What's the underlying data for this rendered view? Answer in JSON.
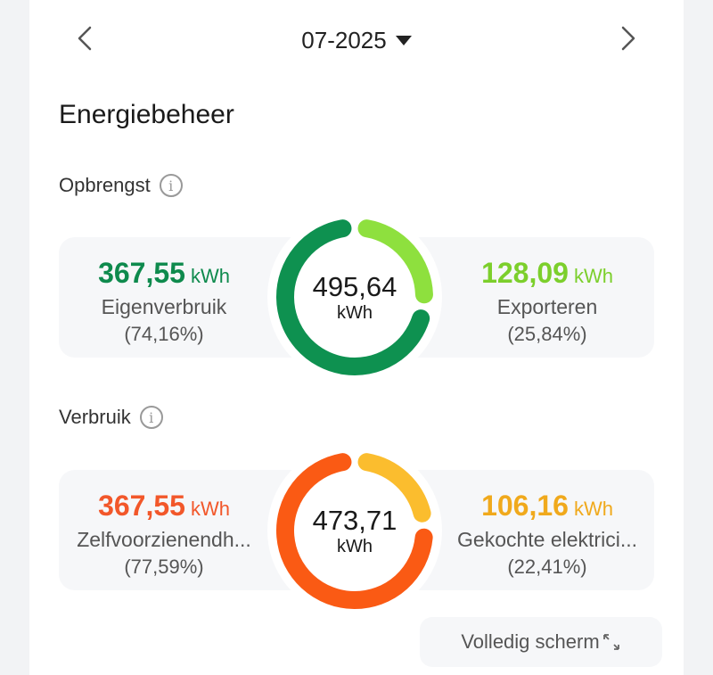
{
  "header": {
    "month": "07-2025"
  },
  "title": "Energiebeheer",
  "production": {
    "label": "Opbrengst",
    "total": "495,64",
    "unit": "kWh",
    "left": {
      "value": "367,55",
      "unit": "kWh",
      "label": "Eigenverbruik",
      "pct": "(74,16%)",
      "fraction": 0.7416,
      "color": "#0e9150"
    },
    "right": {
      "value": "128,09",
      "unit": "kWh",
      "label": "Exporteren",
      "pct": "(25,84%)",
      "fraction": 0.2584,
      "color": "#8ee03e"
    }
  },
  "consumption": {
    "label": "Verbruik",
    "total": "473,71",
    "unit": "kWh",
    "left": {
      "value": "367,55",
      "unit": "kWh",
      "label": "Zelfvoorzienendh...",
      "pct": "(77,59%)",
      "fraction": 0.7759,
      "color": "#fa5a14"
    },
    "right": {
      "value": "106,16",
      "unit": "kWh",
      "label": "Gekochte elektrici...",
      "pct": "(22,41%)",
      "fraction": 0.2241,
      "color": "#fbbd2e"
    }
  },
  "fullscreen_label": "Volledig scherm"
}
